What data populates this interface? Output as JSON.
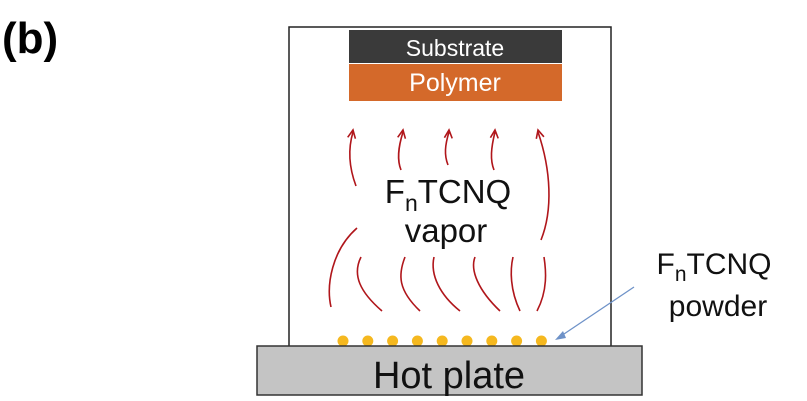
{
  "panel_label": "(b)",
  "substrate_label": "Substrate",
  "polymer_label": "Polymer",
  "vapor": {
    "formula_main": "F",
    "formula_sub": "n",
    "formula_rest": "TCNQ",
    "word": "vapor"
  },
  "powder": {
    "formula_main": "F",
    "formula_sub": "n",
    "formula_rest": "TCNQ",
    "word": "powder"
  },
  "hot_plate_label": "Hot plate",
  "colors": {
    "substrate": "#3a3a3a",
    "polymer": "#d4692a",
    "vapor_arrows": "#b0161b",
    "powder_dots": "#f5b81f",
    "hot_plate": "#c4c4c4",
    "pointer_line": "#6e92c8"
  }
}
